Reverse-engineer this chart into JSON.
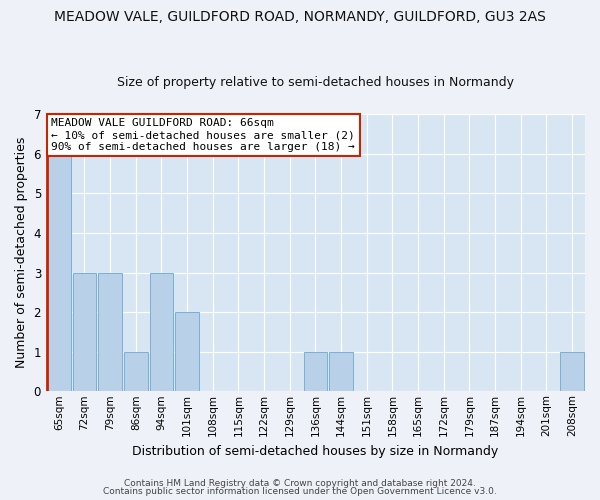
{
  "title1": "MEADOW VALE, GUILDFORD ROAD, NORMANDY, GUILDFORD, GU3 2AS",
  "title2": "Size of property relative to semi-detached houses in Normandy",
  "xlabel": "Distribution of semi-detached houses by size in Normandy",
  "ylabel": "Number of semi-detached properties",
  "categories": [
    "65sqm",
    "72sqm",
    "79sqm",
    "86sqm",
    "94sqm",
    "101sqm",
    "108sqm",
    "115sqm",
    "122sqm",
    "129sqm",
    "136sqm",
    "144sqm",
    "151sqm",
    "158sqm",
    "165sqm",
    "172sqm",
    "179sqm",
    "187sqm",
    "194sqm",
    "201sqm",
    "208sqm"
  ],
  "values": [
    6,
    3,
    3,
    1,
    3,
    2,
    0,
    0,
    0,
    0,
    1,
    1,
    0,
    0,
    0,
    0,
    0,
    0,
    0,
    0,
    1
  ],
  "bar_color": "#b8d0e8",
  "bar_edge_color": "#7aafd4",
  "subject_bar_color": "#c8ddf0",
  "subject_index": 0,
  "subject_line_color": "#cc2200",
  "subject_label": "MEADOW VALE GUILDFORD ROAD: 66sqm",
  "annotation_line1": "← 10% of semi-detached houses are smaller (2)",
  "annotation_line2": "90% of semi-detached houses are larger (18) →",
  "ylim": [
    0,
    7
  ],
  "yticks": [
    0,
    1,
    2,
    3,
    4,
    5,
    6,
    7
  ],
  "footer1": "Contains HM Land Registry data © Crown copyright and database right 2024.",
  "footer2": "Contains public sector information licensed under the Open Government Licence v3.0.",
  "bg_color": "#eef2f8",
  "plot_bg_color": "#d8e6f4",
  "grid_color": "#ffffff",
  "annotation_box_color": "#ffffff",
  "annotation_box_edge": "#cc2200",
  "title1_fontsize": 10,
  "title2_fontsize": 9
}
